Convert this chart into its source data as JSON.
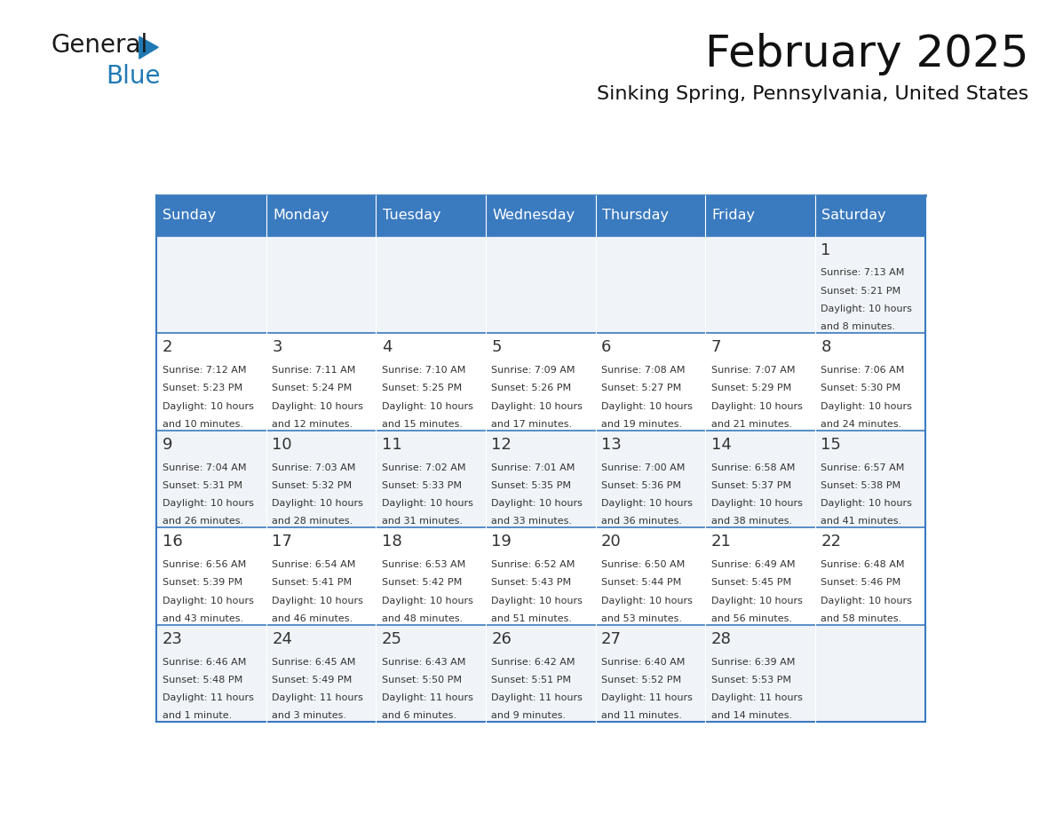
{
  "title": "February 2025",
  "subtitle": "Sinking Spring, Pennsylvania, United States",
  "header_color": "#3a7abf",
  "header_text_color": "#ffffff",
  "cell_bg_row0": "#f0f4f8",
  "cell_bg_row1": "#ffffff",
  "border_color": "#3a7abf",
  "text_color": "#333333",
  "day_headers": [
    "Sunday",
    "Monday",
    "Tuesday",
    "Wednesday",
    "Thursday",
    "Friday",
    "Saturday"
  ],
  "weeks": [
    [
      {
        "day": "",
        "info": ""
      },
      {
        "day": "",
        "info": ""
      },
      {
        "day": "",
        "info": ""
      },
      {
        "day": "",
        "info": ""
      },
      {
        "day": "",
        "info": ""
      },
      {
        "day": "",
        "info": ""
      },
      {
        "day": "1",
        "info": "Sunrise: 7:13 AM\nSunset: 5:21 PM\nDaylight: 10 hours\nand 8 minutes."
      }
    ],
    [
      {
        "day": "2",
        "info": "Sunrise: 7:12 AM\nSunset: 5:23 PM\nDaylight: 10 hours\nand 10 minutes."
      },
      {
        "day": "3",
        "info": "Sunrise: 7:11 AM\nSunset: 5:24 PM\nDaylight: 10 hours\nand 12 minutes."
      },
      {
        "day": "4",
        "info": "Sunrise: 7:10 AM\nSunset: 5:25 PM\nDaylight: 10 hours\nand 15 minutes."
      },
      {
        "day": "5",
        "info": "Sunrise: 7:09 AM\nSunset: 5:26 PM\nDaylight: 10 hours\nand 17 minutes."
      },
      {
        "day": "6",
        "info": "Sunrise: 7:08 AM\nSunset: 5:27 PM\nDaylight: 10 hours\nand 19 minutes."
      },
      {
        "day": "7",
        "info": "Sunrise: 7:07 AM\nSunset: 5:29 PM\nDaylight: 10 hours\nand 21 minutes."
      },
      {
        "day": "8",
        "info": "Sunrise: 7:06 AM\nSunset: 5:30 PM\nDaylight: 10 hours\nand 24 minutes."
      }
    ],
    [
      {
        "day": "9",
        "info": "Sunrise: 7:04 AM\nSunset: 5:31 PM\nDaylight: 10 hours\nand 26 minutes."
      },
      {
        "day": "10",
        "info": "Sunrise: 7:03 AM\nSunset: 5:32 PM\nDaylight: 10 hours\nand 28 minutes."
      },
      {
        "day": "11",
        "info": "Sunrise: 7:02 AM\nSunset: 5:33 PM\nDaylight: 10 hours\nand 31 minutes."
      },
      {
        "day": "12",
        "info": "Sunrise: 7:01 AM\nSunset: 5:35 PM\nDaylight: 10 hours\nand 33 minutes."
      },
      {
        "day": "13",
        "info": "Sunrise: 7:00 AM\nSunset: 5:36 PM\nDaylight: 10 hours\nand 36 minutes."
      },
      {
        "day": "14",
        "info": "Sunrise: 6:58 AM\nSunset: 5:37 PM\nDaylight: 10 hours\nand 38 minutes."
      },
      {
        "day": "15",
        "info": "Sunrise: 6:57 AM\nSunset: 5:38 PM\nDaylight: 10 hours\nand 41 minutes."
      }
    ],
    [
      {
        "day": "16",
        "info": "Sunrise: 6:56 AM\nSunset: 5:39 PM\nDaylight: 10 hours\nand 43 minutes."
      },
      {
        "day": "17",
        "info": "Sunrise: 6:54 AM\nSunset: 5:41 PM\nDaylight: 10 hours\nand 46 minutes."
      },
      {
        "day": "18",
        "info": "Sunrise: 6:53 AM\nSunset: 5:42 PM\nDaylight: 10 hours\nand 48 minutes."
      },
      {
        "day": "19",
        "info": "Sunrise: 6:52 AM\nSunset: 5:43 PM\nDaylight: 10 hours\nand 51 minutes."
      },
      {
        "day": "20",
        "info": "Sunrise: 6:50 AM\nSunset: 5:44 PM\nDaylight: 10 hours\nand 53 minutes."
      },
      {
        "day": "21",
        "info": "Sunrise: 6:49 AM\nSunset: 5:45 PM\nDaylight: 10 hours\nand 56 minutes."
      },
      {
        "day": "22",
        "info": "Sunrise: 6:48 AM\nSunset: 5:46 PM\nDaylight: 10 hours\nand 58 minutes."
      }
    ],
    [
      {
        "day": "23",
        "info": "Sunrise: 6:46 AM\nSunset: 5:48 PM\nDaylight: 11 hours\nand 1 minute."
      },
      {
        "day": "24",
        "info": "Sunrise: 6:45 AM\nSunset: 5:49 PM\nDaylight: 11 hours\nand 3 minutes."
      },
      {
        "day": "25",
        "info": "Sunrise: 6:43 AM\nSunset: 5:50 PM\nDaylight: 11 hours\nand 6 minutes."
      },
      {
        "day": "26",
        "info": "Sunrise: 6:42 AM\nSunset: 5:51 PM\nDaylight: 11 hours\nand 9 minutes."
      },
      {
        "day": "27",
        "info": "Sunrise: 6:40 AM\nSunset: 5:52 PM\nDaylight: 11 hours\nand 11 minutes."
      },
      {
        "day": "28",
        "info": "Sunrise: 6:39 AM\nSunset: 5:53 PM\nDaylight: 11 hours\nand 14 minutes."
      },
      {
        "day": "",
        "info": ""
      }
    ]
  ],
  "logo_text_general": "General",
  "logo_text_blue": "Blue",
  "logo_general_color": "#1a1a1a",
  "logo_blue_color": "#2079b4"
}
